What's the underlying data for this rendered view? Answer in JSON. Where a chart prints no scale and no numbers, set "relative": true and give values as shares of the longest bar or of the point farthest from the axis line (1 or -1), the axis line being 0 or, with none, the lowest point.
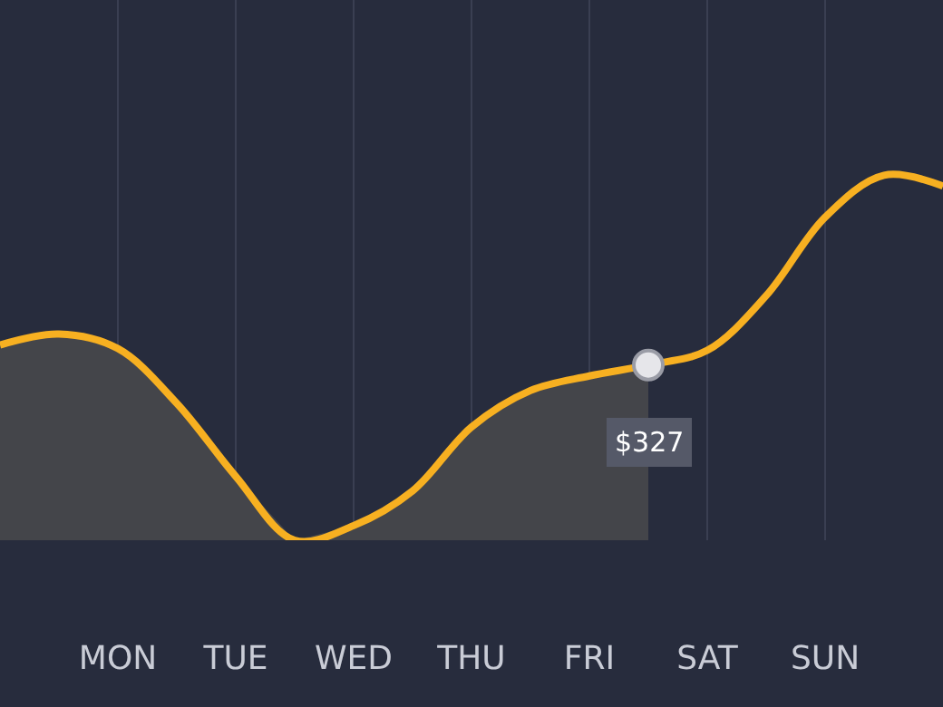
{
  "chart_data": {
    "type": "line",
    "relative": true,
    "categories": [
      null,
      null,
      "MON",
      null,
      "TUE",
      null,
      "WED",
      null,
      "THU",
      null,
      "FRI",
      null,
      "SAT",
      null,
      "SUN",
      null,
      null
    ],
    "grid": "x",
    "line_style": "solid",
    "annotations": [
      "$327"
    ],
    "series": [
      {
        "type": "area",
        "color": "#44454a",
        "values": [
          0.535,
          0.565,
          0.525,
          0.375,
          0.175,
          0,
          0.04,
          0.135,
          0.31,
          0.41,
          0.45,
          0.48,
          null,
          null,
          null,
          null,
          null
        ]
      },
      {
        "color": "#f7b021",
        "marker": "none",
        "values": [
          0.535,
          0.565,
          0.525,
          0.375,
          0.175,
          0,
          0.04,
          0.135,
          0.31,
          0.41,
          0.45,
          0.48,
          0.52,
          0.67,
          0.885,
          1,
          0.97
        ]
      },
      {
        "type": "scatter",
        "color": "#e6e6ea",
        "marker": "circle",
        "values": [
          null,
          null,
          null,
          null,
          null,
          null,
          null,
          null,
          null,
          null,
          null,
          0.48,
          null,
          null,
          null,
          null,
          null
        ]
      }
    ]
  }
}
